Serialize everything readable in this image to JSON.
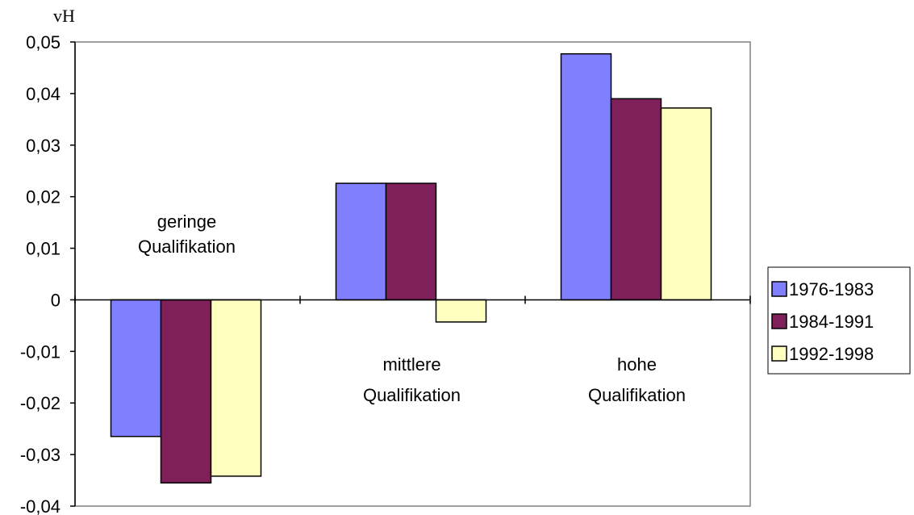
{
  "chart_data": {
    "type": "bar",
    "unit_label": "vH",
    "categories": [
      [
        "geringe",
        "Qualifikation"
      ],
      [
        "mittlere",
        "Qualifikation"
      ],
      [
        "hohe",
        "Qualifikation"
      ]
    ],
    "series": [
      {
        "name": "1976-1983",
        "color": "#8080ff",
        "values": [
          -0.0265,
          0.0226,
          0.0477
        ]
      },
      {
        "name": "1984-1991",
        "color": "#80205a",
        "values": [
          -0.0355,
          0.0226,
          0.039
        ]
      },
      {
        "name": "1992-1998",
        "color": "#ffffc0",
        "values": [
          -0.0342,
          -0.0043,
          0.0372
        ]
      }
    ],
    "ylim": [
      -0.04,
      0.05
    ],
    "y_ticks": [
      "0,05",
      "0,04",
      "0,03",
      "0,02",
      "0,01",
      "0",
      "-0,01",
      "-0,02",
      "-0,03",
      "-0,04"
    ],
    "y_tick_values": [
      0.05,
      0.04,
      0.03,
      0.02,
      0.01,
      0,
      -0.01,
      -0.02,
      -0.03,
      -0.04
    ],
    "grid": false,
    "legend_position": "right"
  }
}
